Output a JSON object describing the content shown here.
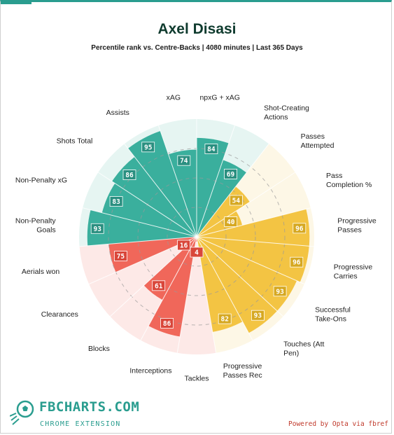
{
  "player_name": "Axel Disasi",
  "subtitle": "Percentile rank vs. Centre-Backs | 4080 minutes | Last 365 Days",
  "logo": {
    "text": "FBCHARTS.COM",
    "sub": "CHROME EXTENSION",
    "icon": "soccer-ball-icon"
  },
  "credit": "Powered by Opta via fbref",
  "colors": {
    "attacking": "#3aaf9d",
    "attacking_bg": "#e6f5f2",
    "possession": "#f3c443",
    "possession_bg": "#fdf7e6",
    "defending": "#f0675a",
    "defending_bg": "#fde9e7",
    "value_attacking": "#2a8f80",
    "value_possession": "#d6a821",
    "value_defending": "#d9463a"
  },
  "chart_data": {
    "type": "pie",
    "subtype": "percentile-radar",
    "title": "Axel Disasi",
    "subtitle": "Percentile rank vs. Centre-Backs | 4080 minutes | Last 365 Days",
    "range": [
      0,
      100
    ],
    "categories": [
      {
        "name": "npxG + xAG",
        "value": 84,
        "group": "attacking"
      },
      {
        "name": "Shot-Creating\nActions",
        "value": 69,
        "group": "attacking"
      },
      {
        "name": "Passes\nAttempted",
        "value": 54,
        "group": "possession"
      },
      {
        "name": "Pass\nCompletion %",
        "value": 40,
        "group": "possession"
      },
      {
        "name": "Progressive\nPasses",
        "value": 96,
        "group": "possession"
      },
      {
        "name": "Progressive\nCarries",
        "value": 96,
        "group": "possession"
      },
      {
        "name": "Successful\nTake-Ons",
        "value": 93,
        "group": "possession"
      },
      {
        "name": "Touches (Att\nPen)",
        "value": 93,
        "group": "possession"
      },
      {
        "name": "Progressive\nPasses Rec",
        "value": 82,
        "group": "possession"
      },
      {
        "name": "Tackles",
        "value": 4,
        "group": "defending"
      },
      {
        "name": "Interceptions",
        "value": 86,
        "group": "defending"
      },
      {
        "name": "Blocks",
        "value": 61,
        "group": "defending"
      },
      {
        "name": "Clearances",
        "value": 16,
        "group": "defending"
      },
      {
        "name": "Aerials won",
        "value": 75,
        "group": "defending"
      },
      {
        "name": "Non-Penalty\nGoals",
        "value": 93,
        "group": "attacking"
      },
      {
        "name": "Non-Penalty xG",
        "value": 83,
        "group": "attacking"
      },
      {
        "name": "Shots Total",
        "value": 86,
        "group": "attacking"
      },
      {
        "name": "Assists",
        "value": 95,
        "group": "attacking"
      },
      {
        "name": "xAG",
        "value": 74,
        "group": "attacking"
      }
    ]
  }
}
